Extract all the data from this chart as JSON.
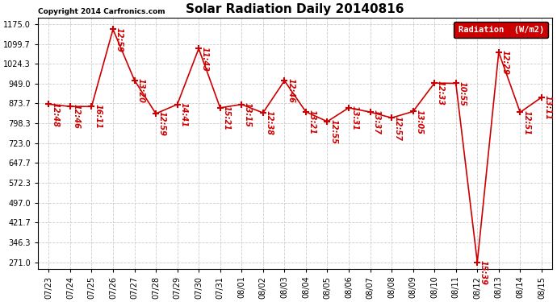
{
  "title": "Solar Radiation Daily 20140816",
  "copyright": "Copyright 2014 Carfronics.com",
  "legend_label": "Radiation  (W/m2)",
  "background_color": "#ffffff",
  "grid_color": "#cccccc",
  "line_color": "#cc0000",
  "label_color": "#cc0000",
  "dates": [
    "07/23",
    "07/24",
    "07/25",
    "07/26",
    "07/27",
    "07/28",
    "07/29",
    "07/30",
    "07/31",
    "08/01",
    "08/02",
    "08/03",
    "08/04",
    "08/05",
    "08/06",
    "08/07",
    "08/08",
    "08/09",
    "08/10",
    "08/11",
    "08/12",
    "08/13",
    "08/14",
    "08/15"
  ],
  "values": [
    871,
    862,
    862,
    1155,
    962,
    835,
    870,
    1082,
    857,
    870,
    838,
    960,
    842,
    805,
    857,
    841,
    819,
    843,
    951,
    950,
    271,
    1068,
    840,
    897
  ],
  "time_labels": [
    "12:48",
    "12:46",
    "16:11",
    "12:59",
    "13:20",
    "12:59",
    "14:41",
    "11:43",
    "15:21",
    "13:15",
    "12:38",
    "12:46",
    "13:21",
    "12:55",
    "13:31",
    "13:37",
    "12:57",
    "13:05",
    "12:33",
    "10:55",
    "15:39",
    "12:29",
    "12:51",
    "13:11"
  ],
  "yticks": [
    271.0,
    346.3,
    421.7,
    497.0,
    572.3,
    647.7,
    723.0,
    798.3,
    873.7,
    949.0,
    1024.3,
    1099.7,
    1175.0
  ],
  "ylim": [
    246.0,
    1200.0
  ],
  "marker": "+",
  "marker_size": 6,
  "line_width": 1.2,
  "title_fontsize": 11,
  "label_fontsize": 7,
  "tick_fontsize": 7,
  "fig_width": 6.9,
  "fig_height": 3.75,
  "dpi": 100
}
